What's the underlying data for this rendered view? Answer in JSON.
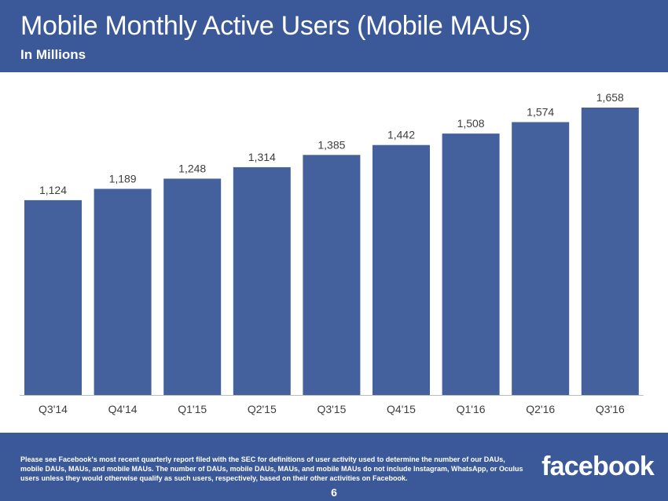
{
  "header": {
    "title": "Mobile Monthly Active Users (Mobile MAUs)",
    "subtitle": "In Millions"
  },
  "chart_data": {
    "type": "bar",
    "title": "Mobile Monthly Active Users (Mobile MAUs)",
    "subtitle": "In Millions",
    "categories": [
      "Q3'14",
      "Q4'14",
      "Q1'15",
      "Q2'15",
      "Q3'15",
      "Q4'15",
      "Q1'16",
      "Q2'16",
      "Q3'16"
    ],
    "values": [
      1124,
      1189,
      1248,
      1314,
      1385,
      1442,
      1508,
      1574,
      1658
    ],
    "value_labels": [
      "1,124",
      "1,189",
      "1,248",
      "1,314",
      "1,385",
      "1,442",
      "1,508",
      "1,574",
      "1,658"
    ],
    "xlabel": "",
    "ylabel": "",
    "ylim": [
      0,
      1658
    ],
    "grid": false,
    "bar_color": "#45619d"
  },
  "footer": {
    "disclaimer": "Please see Facebook's most recent quarterly report filed with the SEC for definitions of user activity used to determine the number of our DAUs, mobile DAUs, MAUs, and mobile MAUs. The number of DAUs, mobile DAUs, MAUs, and mobile MAUs do not include Instagram, WhatsApp, or Oculus users unless they would otherwise qualify as such users, respectively, based on their other activities on Facebook.",
    "logo_text": "facebook",
    "page_number": "6"
  },
  "colors": {
    "brand": "#3b5998",
    "bar": "#45619d"
  }
}
